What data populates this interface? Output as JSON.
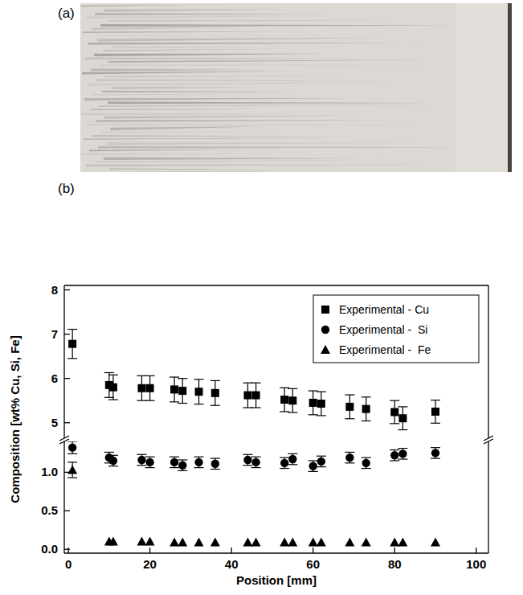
{
  "panels": {
    "a": "(a)",
    "b": "(b)"
  },
  "chart_data": {
    "type": "scatter",
    "xlabel": "Position [mm]",
    "ylabel": "Composition [wt% Cu, Si, Fe]",
    "x": [
      1,
      10,
      11,
      18,
      20,
      26,
      28,
      32,
      36,
      44,
      46,
      53,
      55,
      60,
      62,
      69,
      73,
      80,
      82,
      90
    ],
    "xlim": [
      -1,
      103
    ],
    "xticks": [
      0,
      20,
      40,
      60,
      80,
      100
    ],
    "ylim": [
      -0.05,
      8.1
    ],
    "ybreak": [
      1.4,
      4.65
    ],
    "yticks": [
      {
        "value": 0,
        "label": "0.0"
      },
      {
        "value": 0.5,
        "label": "0.5"
      },
      {
        "value": 1,
        "label": "1.0"
      },
      5,
      6,
      7,
      8
    ],
    "legend": "upper right",
    "series": [
      {
        "name": "Experimental - Cu",
        "color": "#000000",
        "marker": "square",
        "values": [
          6.78,
          5.85,
          5.8,
          5.78,
          5.78,
          5.75,
          5.72,
          5.7,
          5.67,
          5.62,
          5.62,
          5.52,
          5.5,
          5.45,
          5.43,
          5.36,
          5.31,
          5.24,
          5.1,
          5.25
        ],
        "errors": [
          0.33,
          0.28,
          0.28,
          0.28,
          0.28,
          0.28,
          0.28,
          0.28,
          0.28,
          0.28,
          0.28,
          0.27,
          0.27,
          0.27,
          0.27,
          0.27,
          0.27,
          0.26,
          0.26,
          0.26
        ]
      },
      {
        "name": "Experimental -  Si",
        "color": "#000000",
        "marker": "circle",
        "values": [
          1.32,
          1.19,
          1.15,
          1.16,
          1.13,
          1.13,
          1.09,
          1.13,
          1.11,
          1.16,
          1.13,
          1.12,
          1.17,
          1.08,
          1.14,
          1.19,
          1.12,
          1.22,
          1.24,
          1.25
        ],
        "errors": [
          0.08,
          0.07,
          0.07,
          0.07,
          0.07,
          0.07,
          0.07,
          0.07,
          0.07,
          0.07,
          0.07,
          0.07,
          0.07,
          0.07,
          0.07,
          0.07,
          0.07,
          0.07,
          0.07,
          0.07
        ]
      },
      {
        "name": "Experimental -  Fe",
        "color": "#000000",
        "marker": "triangle",
        "values": [
          1.03,
          0.1,
          0.1,
          0.1,
          0.1,
          0.09,
          0.09,
          0.09,
          0.09,
          0.09,
          0.09,
          0.09,
          0.09,
          0.09,
          0.09,
          0.09,
          0.09,
          0.09,
          0.09,
          0.09
        ],
        "errors": [
          0.1,
          null,
          null,
          null,
          null,
          null,
          null,
          null,
          null,
          null,
          null,
          null,
          null,
          null,
          null,
          null,
          null,
          null,
          null,
          null
        ]
      }
    ]
  }
}
